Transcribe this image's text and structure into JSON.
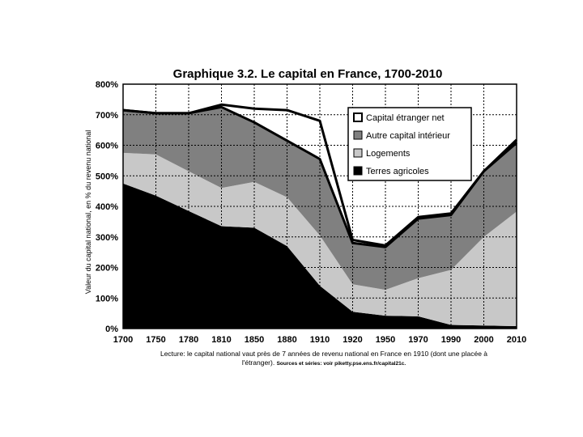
{
  "chart_data": {
    "type": "area",
    "title": "Graphique 3.2. Le capital en France, 1700-2010",
    "xlabel": "",
    "ylabel": "Valeur du capital national, en % du revenu national",
    "x": [
      1700,
      1750,
      1780,
      1810,
      1850,
      1880,
      1910,
      1920,
      1950,
      1970,
      1990,
      2000,
      2010
    ],
    "ylim": [
      0,
      800
    ],
    "yticks": [
      "0%",
      "100%",
      "200%",
      "300%",
      "400%",
      "500%",
      "600%",
      "700%",
      "800%"
    ],
    "xticks": [
      "1700",
      "1750",
      "1780",
      "1810",
      "1850",
      "1880",
      "1910",
      "1920",
      "1950",
      "1970",
      "1990",
      "2000",
      "2010"
    ],
    "grid": true,
    "legend_position": "top-right",
    "series": [
      {
        "name": "Terres agricoles",
        "color": "#000000",
        "values": [
          475,
          435,
          385,
          335,
          330,
          270,
          140,
          55,
          42,
          40,
          12,
          10,
          8
        ]
      },
      {
        "name": "Logements",
        "color": "#c8c8c8",
        "values": [
          100,
          135,
          130,
          125,
          150,
          160,
          165,
          90,
          85,
          125,
          180,
          290,
          375
        ]
      },
      {
        "name": "Autre capital intérieur",
        "color": "#808080",
        "values": [
          140,
          135,
          190,
          265,
          195,
          185,
          250,
          135,
          140,
          195,
          180,
          215,
          225
        ]
      },
      {
        "name": "Capital étranger net",
        "color": "#ffffff",
        "values": [
          0,
          0,
          0,
          8,
          45,
          100,
          125,
          10,
          5,
          5,
          5,
          0,
          10
        ]
      }
    ],
    "legend_order": [
      "Capital étranger net",
      "Autre capital intérieur",
      "Logements",
      "Terres agricoles"
    ]
  },
  "caption": {
    "main": "Lecture: le capital national vaut près de 7 années de revenu national en France en 1910 (dont une placée à",
    "line2": "l'étranger).",
    "sources": "Sources et séries: voir piketty.pse.ens.fr/capital21c."
  }
}
